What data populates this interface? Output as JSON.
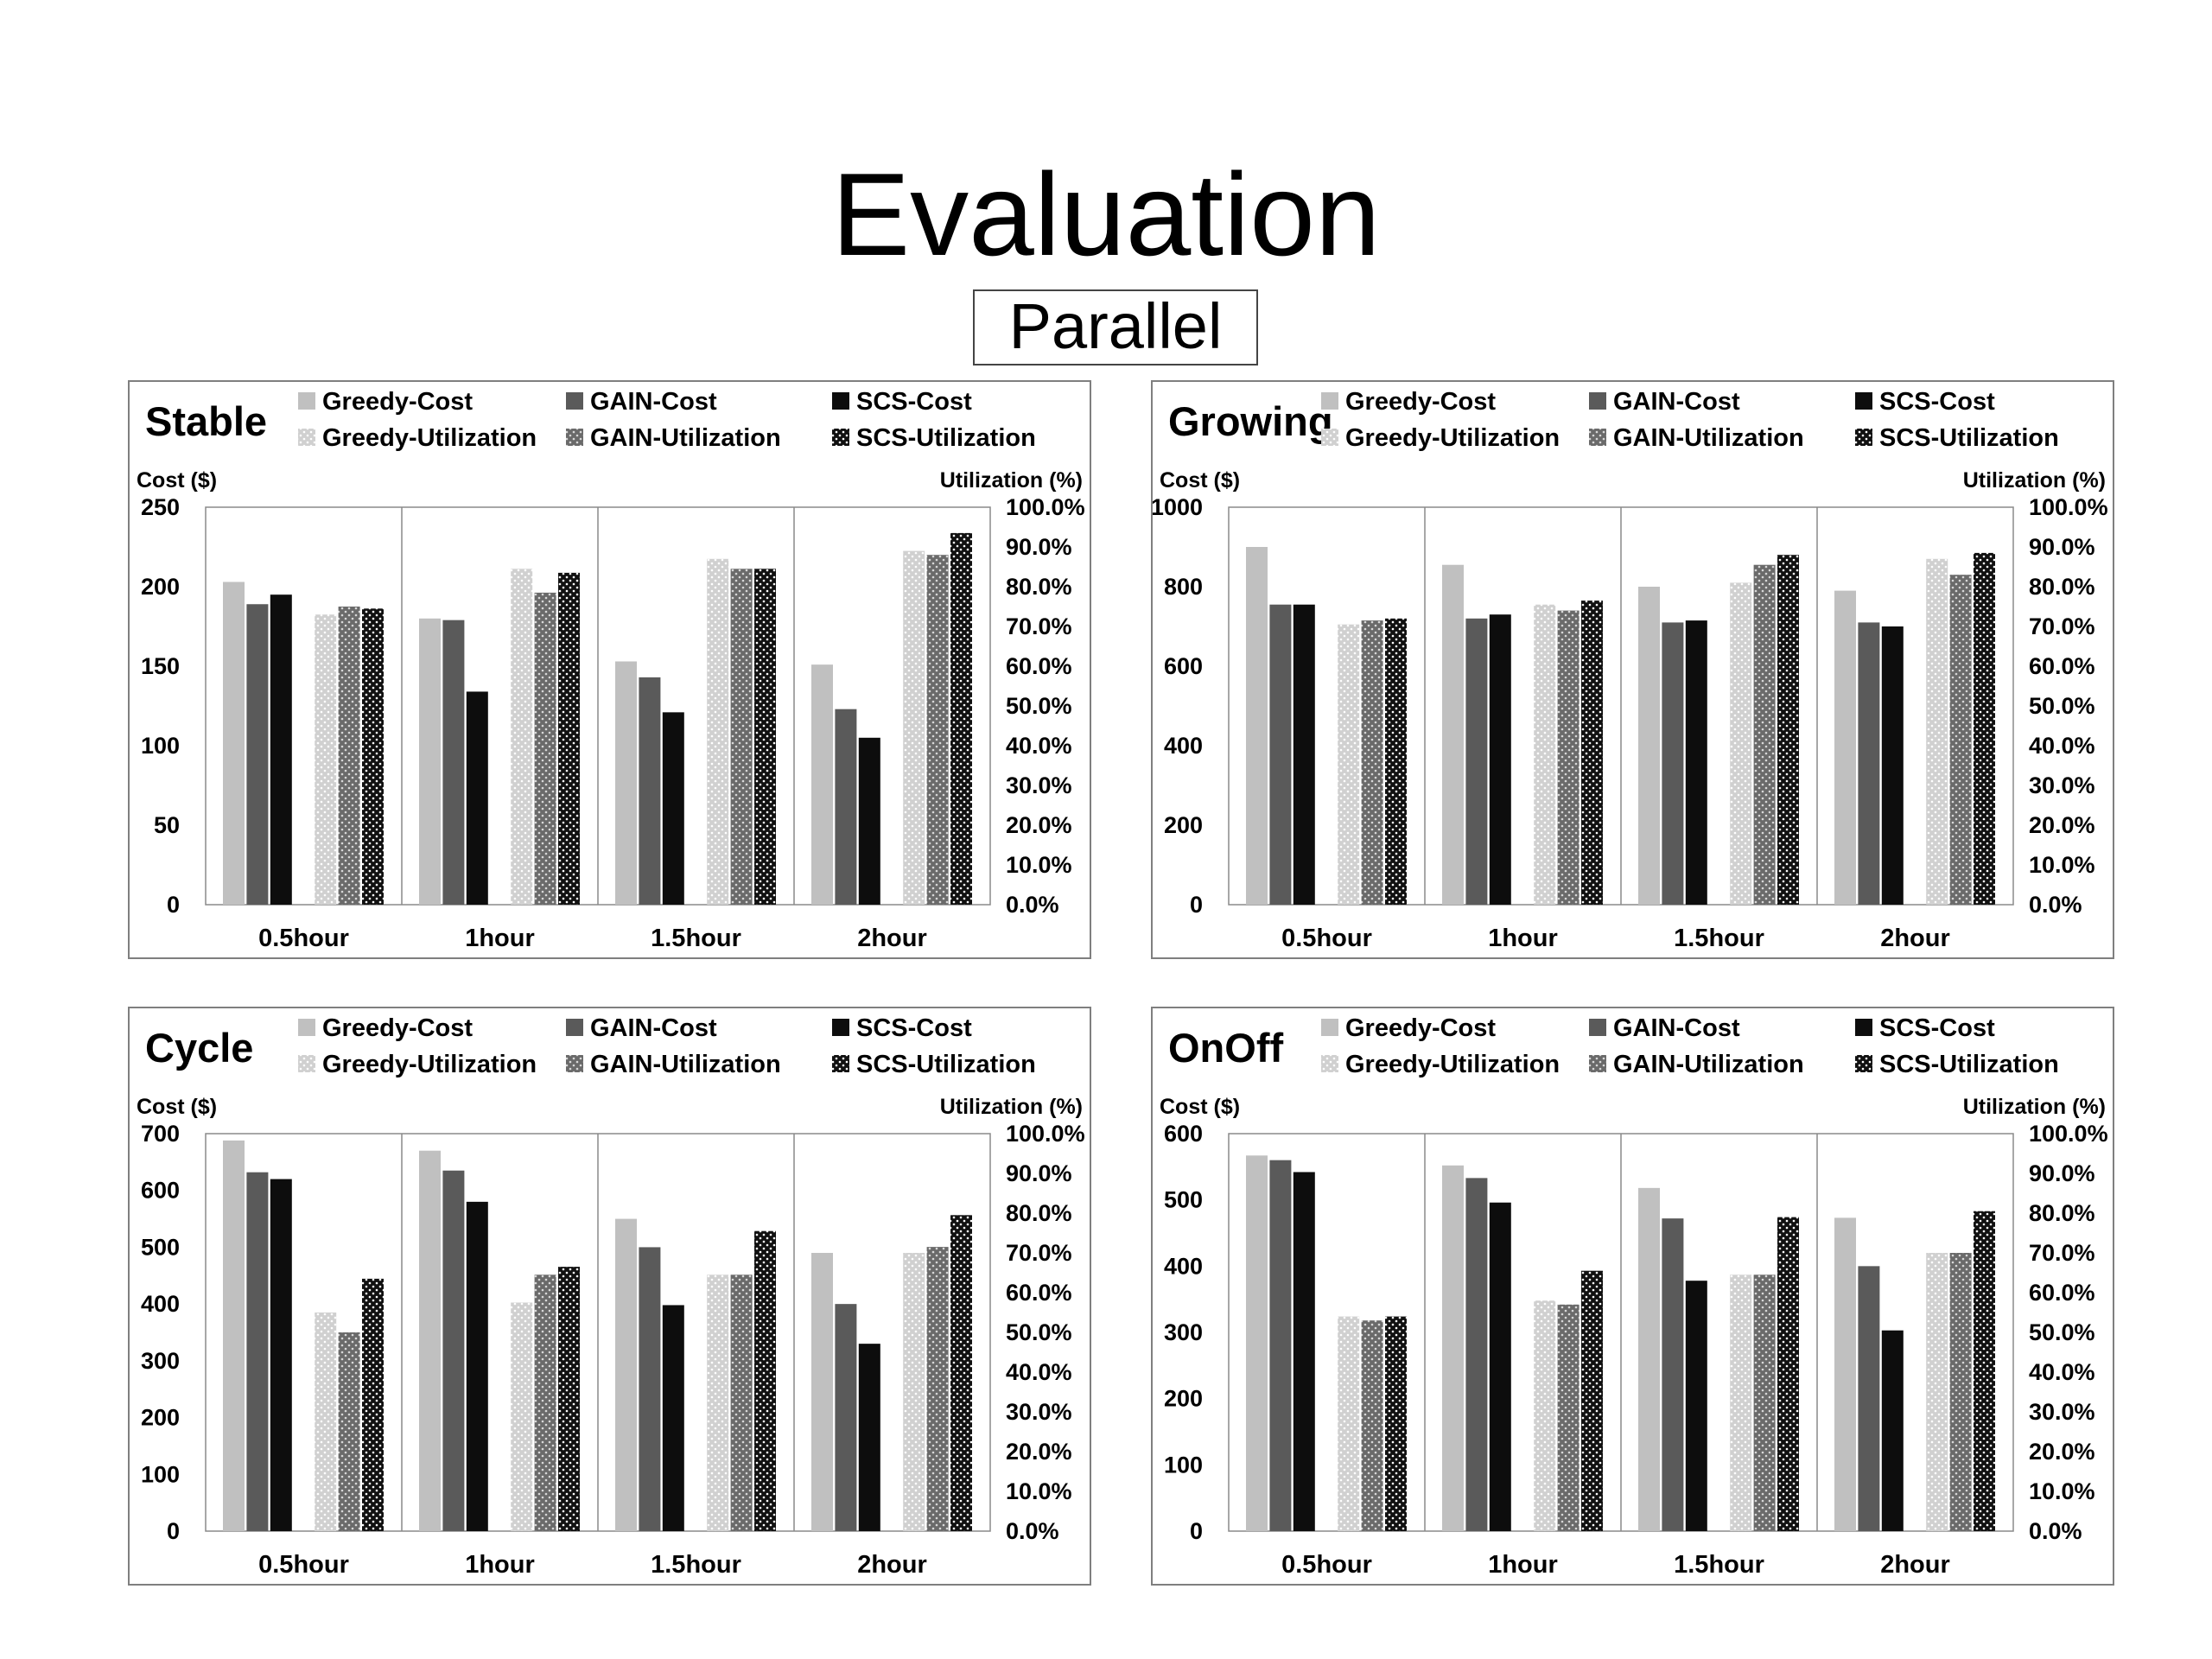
{
  "slide": {
    "title": "Evaluation",
    "subtitle": "Parallel"
  },
  "legend_series": [
    "Greedy-Cost",
    "GAIN-Cost",
    "SCS-Cost",
    "Greedy-Utilization",
    "GAIN-Utilization",
    "SCS-Utilization"
  ],
  "series_colors": {
    "Greedy-Cost": "#c0c0c0",
    "GAIN-Cost": "#5a5a5a",
    "SCS-Cost": "#0d0d0d",
    "Greedy-Utilization": "#d0d0d0",
    "GAIN-Utilization": "#6a6a6a",
    "SCS-Utilization": "#111111"
  },
  "utilization_ticks": [
    "0.0%",
    "10.0%",
    "20.0%",
    "30.0%",
    "40.0%",
    "50.0%",
    "60.0%",
    "70.0%",
    "80.0%",
    "90.0%",
    "100.0%"
  ],
  "chart_data": [
    {
      "type": "bar",
      "title": "Stable",
      "ylabel": "Cost ($)",
      "y2label": "Utilization (%)",
      "categories": [
        "0.5hour",
        "1hour",
        "1.5hour",
        "2hour"
      ],
      "ylim": [
        0,
        250
      ],
      "yticks": [
        0,
        50,
        100,
        150,
        200,
        250
      ],
      "y2lim": [
        0,
        100
      ],
      "grid": true,
      "legend_position": "top",
      "series": [
        {
          "name": "Greedy-Cost",
          "axis": "cost",
          "values": [
            203,
            180,
            153,
            151
          ]
        },
        {
          "name": "GAIN-Cost",
          "axis": "cost",
          "values": [
            189,
            179,
            143,
            123
          ]
        },
        {
          "name": "SCS-Cost",
          "axis": "cost",
          "values": [
            195,
            134,
            121,
            105
          ]
        },
        {
          "name": "Greedy-Utilization",
          "axis": "utilization",
          "values": [
            73.0,
            84.5,
            87.0,
            89.0
          ]
        },
        {
          "name": "GAIN-Utilization",
          "axis": "utilization",
          "values": [
            75.0,
            78.5,
            84.5,
            88.0
          ]
        },
        {
          "name": "SCS-Utilization",
          "axis": "utilization",
          "values": [
            74.5,
            83.5,
            84.5,
            93.5
          ]
        }
      ]
    },
    {
      "type": "bar",
      "title": "Growing",
      "ylabel": "Cost ($)",
      "y2label": "Utilization (%)",
      "categories": [
        "0.5hour",
        "1hour",
        "1.5hour",
        "2hour"
      ],
      "ylim": [
        0,
        1000
      ],
      "yticks": [
        0,
        200,
        400,
        600,
        800,
        1000
      ],
      "y2lim": [
        0,
        100
      ],
      "grid": true,
      "legend_position": "top",
      "series": [
        {
          "name": "Greedy-Cost",
          "axis": "cost",
          "values": [
            900,
            855,
            800,
            790
          ]
        },
        {
          "name": "GAIN-Cost",
          "axis": "cost",
          "values": [
            755,
            720,
            710,
            710
          ]
        },
        {
          "name": "SCS-Cost",
          "axis": "cost",
          "values": [
            755,
            730,
            715,
            700
          ]
        },
        {
          "name": "Greedy-Utilization",
          "axis": "utilization",
          "values": [
            70.5,
            75.5,
            81.0,
            87.0
          ]
        },
        {
          "name": "GAIN-Utilization",
          "axis": "utilization",
          "values": [
            71.5,
            74.0,
            85.5,
            83.0
          ]
        },
        {
          "name": "SCS-Utilization",
          "axis": "utilization",
          "values": [
            72.0,
            76.5,
            88.0,
            88.5
          ]
        }
      ]
    },
    {
      "type": "bar",
      "title": "Cycle",
      "ylabel": "Cost ($)",
      "y2label": "Utilization (%)",
      "categories": [
        "0.5hour",
        "1hour",
        "1.5hour",
        "2hour"
      ],
      "ylim": [
        0,
        700
      ],
      "yticks": [
        0,
        100,
        200,
        300,
        400,
        500,
        600,
        700
      ],
      "y2lim": [
        0,
        100
      ],
      "grid": true,
      "legend_position": "top",
      "series": [
        {
          "name": "Greedy-Cost",
          "axis": "cost",
          "values": [
            688,
            670,
            550,
            490
          ]
        },
        {
          "name": "GAIN-Cost",
          "axis": "cost",
          "values": [
            632,
            635,
            500,
            400
          ]
        },
        {
          "name": "SCS-Cost",
          "axis": "cost",
          "values": [
            620,
            580,
            398,
            330
          ]
        },
        {
          "name": "Greedy-Utilization",
          "axis": "utilization",
          "values": [
            55.0,
            57.5,
            64.5,
            70.0
          ]
        },
        {
          "name": "GAIN-Utilization",
          "axis": "utilization",
          "values": [
            50.0,
            64.5,
            64.5,
            71.5
          ]
        },
        {
          "name": "SCS-Utilization",
          "axis": "utilization",
          "values": [
            63.5,
            66.5,
            75.5,
            79.5
          ]
        }
      ]
    },
    {
      "type": "bar",
      "title": "OnOff",
      "ylabel": "Cost ($)",
      "y2label": "Utilization (%)",
      "categories": [
        "0.5hour",
        "1hour",
        "1.5hour",
        "2hour"
      ],
      "ylim": [
        0,
        600
      ],
      "yticks": [
        0,
        100,
        200,
        300,
        400,
        500,
        600
      ],
      "y2lim": [
        0,
        100
      ],
      "grid": true,
      "legend_position": "top",
      "series": [
        {
          "name": "Greedy-Cost",
          "axis": "cost",
          "values": [
            567,
            552,
            518,
            473
          ]
        },
        {
          "name": "GAIN-Cost",
          "axis": "cost",
          "values": [
            560,
            533,
            472,
            400
          ]
        },
        {
          "name": "SCS-Cost",
          "axis": "cost",
          "values": [
            542,
            496,
            378,
            303
          ]
        },
        {
          "name": "Greedy-Utilization",
          "axis": "utilization",
          "values": [
            54.0,
            58.0,
            64.5,
            70.0
          ]
        },
        {
          "name": "GAIN-Utilization",
          "axis": "utilization",
          "values": [
            53.0,
            57.0,
            64.5,
            70.0
          ]
        },
        {
          "name": "SCS-Utilization",
          "axis": "utilization",
          "values": [
            54.0,
            65.5,
            79.0,
            80.5
          ]
        }
      ]
    }
  ]
}
